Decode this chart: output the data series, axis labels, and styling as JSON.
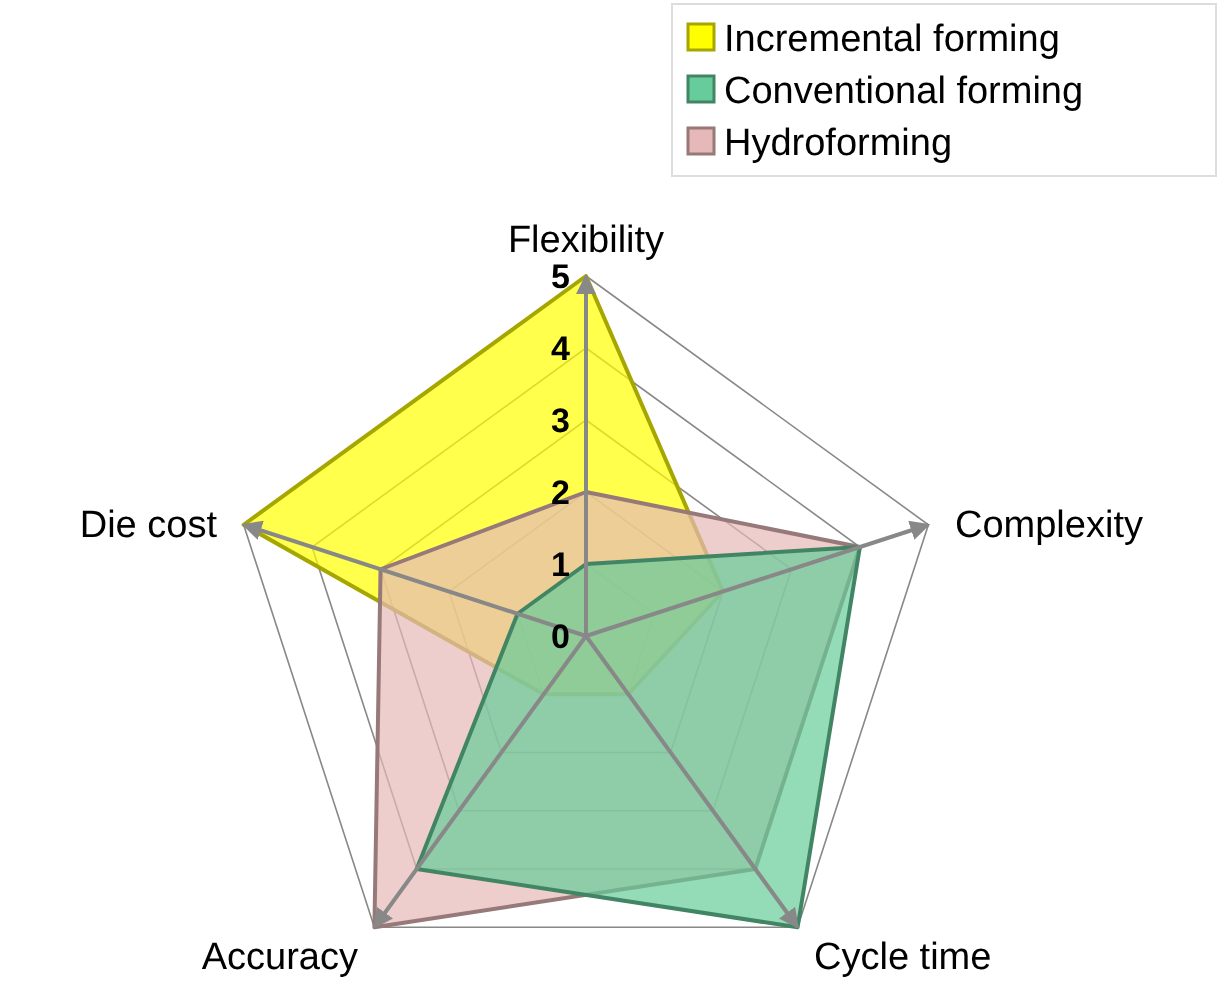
{
  "chart_data": {
    "type": "radar",
    "categories": [
      "Flexibility",
      "Complexity",
      "Cycle time",
      "Accuracy",
      "Die cost"
    ],
    "series": [
      {
        "name": "Incremental  forming",
        "color": "#ffff00",
        "values": [
          5,
          2,
          1,
          1,
          5
        ]
      },
      {
        "name": "Hydroforming",
        "color": "#e6b9b8",
        "values": [
          2,
          4,
          4,
          5,
          3
        ]
      },
      {
        "name": "Conventional forming",
        "color": "#66cc99",
        "values": [
          1,
          4,
          5,
          4,
          1
        ]
      }
    ],
    "ylim": [
      0,
      5
    ],
    "yticks": [
      0,
      1,
      2,
      3,
      4,
      5
    ],
    "grid": true,
    "legend": "top right"
  }
}
